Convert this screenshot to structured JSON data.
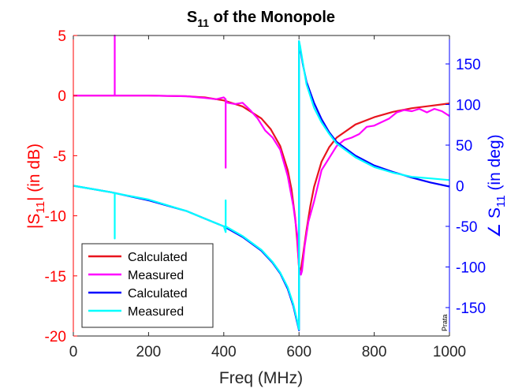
{
  "chart_data": {
    "type": "line",
    "title": "S",
    "title_sub": "11",
    "title_rest": " of the Monopole",
    "xlabel": "Freq (MHz)",
    "ylabel_left": {
      "pre": "|S",
      "sub": "11",
      "post": "| (in dB)"
    },
    "ylabel_right": {
      "pre": "∠ S",
      "sub": "11",
      "post": " (in deg)"
    },
    "watermark": "Prata",
    "xlim": [
      0,
      1000
    ],
    "ylim_left": [
      -20,
      5
    ],
    "ylim_right": [
      -185,
      185
    ],
    "x_ticks": [
      0,
      200,
      400,
      600,
      800,
      1000
    ],
    "y_ticks_left": [
      5,
      0,
      -5,
      -10,
      -15,
      -20
    ],
    "y_ticks_right": [
      150,
      100,
      50,
      0,
      -50,
      -100,
      -150
    ],
    "grid": false,
    "legend_position": "bottom-left",
    "colors": {
      "left_axis": "#ff0000",
      "right_axis": "#0000ff",
      "x_axis": "#262626"
    },
    "series": [
      {
        "name": "Calculated",
        "axis": "left",
        "color": "#e8141e",
        "x": [
          0,
          100,
          200,
          300,
          350,
          400,
          450,
          500,
          525,
          550,
          570,
          580,
          590,
          595,
          600,
          605,
          610,
          620,
          630,
          640,
          660,
          680,
          700,
          750,
          800,
          850,
          900,
          950,
          1000
        ],
        "y": [
          0,
          0,
          0,
          -0.05,
          -0.15,
          -0.4,
          -0.9,
          -1.9,
          -2.8,
          -4.2,
          -6.2,
          -7.8,
          -10.2,
          -12,
          -14.3,
          -14.5,
          -13.4,
          -11.2,
          -9.2,
          -7.6,
          -5.5,
          -4.3,
          -3.5,
          -2.4,
          -1.8,
          -1.35,
          -1.05,
          -0.85,
          -0.65
        ]
      },
      {
        "name": "Measured",
        "axis": "left",
        "color": "#ff00ff",
        "x": [
          0,
          100,
          110,
          110,
          110,
          200,
          300,
          350,
          380,
          400,
          405,
          405,
          405,
          410,
          430,
          450,
          470,
          490,
          510,
          530,
          550,
          570,
          585,
          595,
          600,
          605,
          608,
          615,
          625,
          640,
          660,
          680,
          700,
          720,
          740,
          760,
          780,
          800,
          820,
          840,
          860,
          880,
          900,
          920,
          940,
          960,
          980,
          1000
        ],
        "y": [
          0,
          0,
          0,
          5,
          0,
          0,
          -0.05,
          -0.2,
          -0.3,
          -0.15,
          -0.3,
          -6,
          -0.4,
          -0.6,
          -0.7,
          -0.6,
          -1.2,
          -1.9,
          -2.9,
          -3.5,
          -4.5,
          -6.7,
          -9.2,
          -11.5,
          -14.3,
          -14.9,
          -14.6,
          -12.5,
          -10.5,
          -8.8,
          -6.2,
          -5.2,
          -4.2,
          -3.7,
          -3.5,
          -3.2,
          -2.6,
          -2.5,
          -2.2,
          -1.9,
          -1.4,
          -1.2,
          -1.3,
          -1.1,
          -1.4,
          -1.1,
          -1.3,
          -1.7
        ]
      },
      {
        "name": "Calculated",
        "axis": "right",
        "color": "#0000ff",
        "x": [
          0,
          100,
          200,
          300,
          400,
          450,
          500,
          530,
          550,
          570,
          585,
          595,
          600,
          600,
          603,
          610,
          620,
          640,
          660,
          680,
          700,
          750,
          800,
          850,
          900,
          950,
          1000
        ],
        "y": [
          0,
          -8,
          -18,
          -31,
          -50,
          -63,
          -80,
          -95,
          -108,
          -127,
          -148,
          -168,
          -178,
          178,
          170,
          150,
          128,
          102,
          82,
          66,
          54,
          37,
          25,
          17,
          10,
          4,
          -1
        ]
      },
      {
        "name": "Measured",
        "axis": "right",
        "color": "#00ffff",
        "x": [
          0,
          100,
          110,
          110,
          110,
          200,
          300,
          400,
          405,
          405,
          405,
          450,
          500,
          530,
          550,
          570,
          585,
          595,
          600,
          600,
          603,
          610,
          620,
          640,
          660,
          680,
          700,
          750,
          800,
          850,
          900,
          950,
          1000
        ],
        "y": [
          0,
          -8,
          -9,
          -65,
          -9,
          -17,
          -31,
          -50,
          -57,
          -18,
          -50,
          -62,
          -79,
          -94,
          -107,
          -125,
          -146,
          -166,
          -177,
          178,
          172,
          152,
          125,
          96,
          78,
          64,
          52,
          35,
          23,
          16,
          11,
          9,
          7
        ]
      }
    ]
  }
}
